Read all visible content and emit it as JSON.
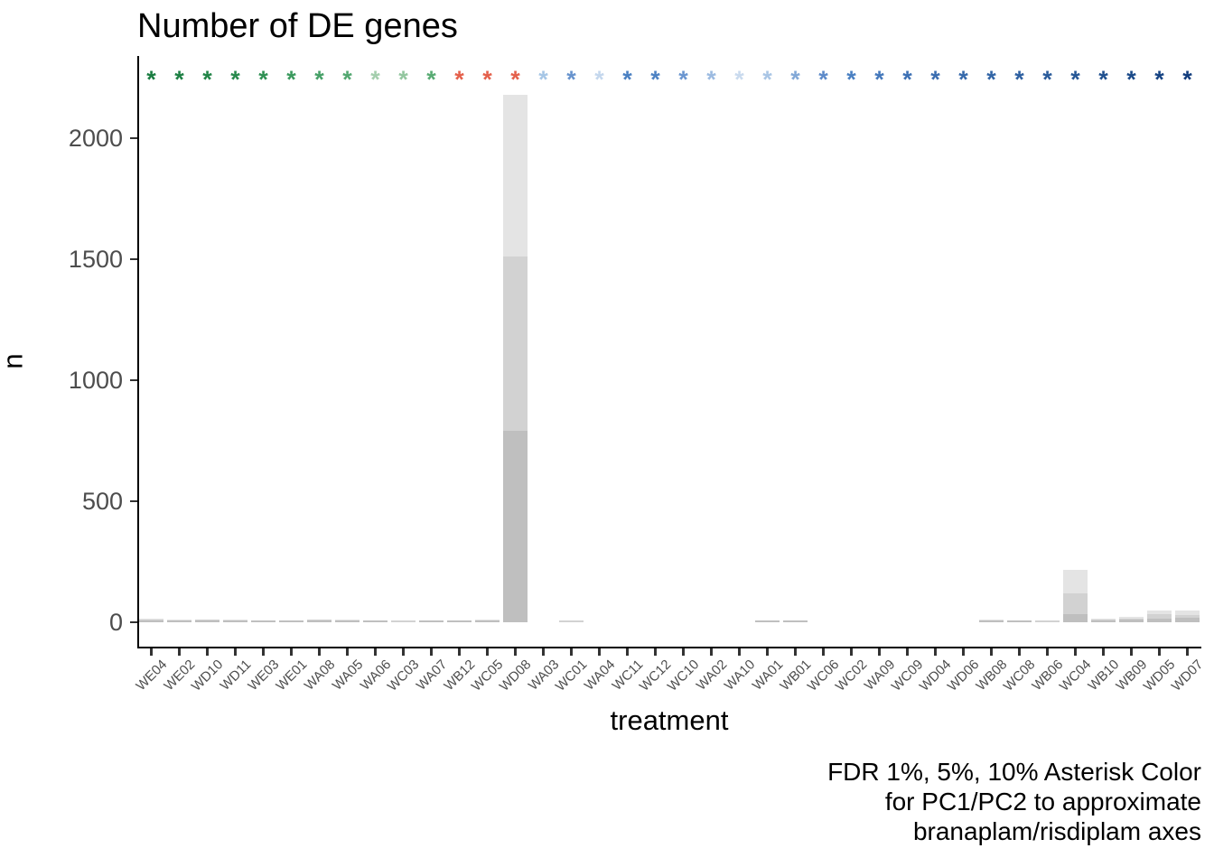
{
  "title": "Number of DE genes",
  "y_axis": {
    "label": "n"
  },
  "x_axis": {
    "label": "treatment"
  },
  "caption": {
    "line1": "FDR 1%, 5%, 10% Asterisk Color",
    "line2": "for PC1/PC2 to approximate",
    "line3": "branaplam/risdiplam axes"
  },
  "chart_data": {
    "type": "bar",
    "title": "Number of DE genes",
    "xlabel": "treatment",
    "ylabel": "n",
    "ylim": [
      0,
      2300
    ],
    "yticks": [
      0,
      500,
      1000,
      1500,
      2000
    ],
    "grid": false,
    "legend_position": "none",
    "bar_mode": "overlay",
    "categories": [
      "WE04",
      "WE02",
      "WD10",
      "WD11",
      "WE03",
      "WE01",
      "WA08",
      "WA05",
      "WA06",
      "WC03",
      "WA07",
      "WB12",
      "WC05",
      "WD08",
      "WA03",
      "WC01",
      "WA04",
      "WC11",
      "WC12",
      "WC10",
      "WA02",
      "WA10",
      "WA01",
      "WB01",
      "WC06",
      "WC02",
      "WA09",
      "WC09",
      "WD04",
      "WD06",
      "WB08",
      "WC08",
      "WB06",
      "WC04",
      "WB10",
      "WB09",
      "WD05",
      "WD07"
    ],
    "series": [
      {
        "name": "FDR 10%",
        "color": "#e4e4e4",
        "values": [
          14,
          11,
          13,
          10,
          8,
          8,
          12,
          10,
          8,
          2,
          5,
          9,
          11,
          2180,
          0,
          4,
          0,
          0,
          0,
          0,
          0,
          0,
          5,
          5,
          0,
          0,
          0,
          0,
          0,
          0,
          10,
          9,
          8,
          215,
          15,
          21,
          50,
          48
        ]
      },
      {
        "name": "FDR 5%",
        "color": "#d2d2d2",
        "values": [
          11,
          9,
          11,
          8,
          5,
          5,
          10,
          8,
          5,
          1,
          3,
          6,
          8,
          1510,
          0,
          2,
          0,
          0,
          0,
          0,
          0,
          0,
          4,
          4,
          0,
          0,
          0,
          0,
          0,
          0,
          7,
          5,
          4,
          120,
          11,
          16,
          33,
          30
        ]
      },
      {
        "name": "FDR 1%",
        "color": "#bfbfbf",
        "values": [
          8,
          6,
          8,
          5,
          2,
          2,
          7,
          5,
          2,
          0,
          1,
          3,
          5,
          790,
          0,
          0,
          0,
          0,
          0,
          0,
          0,
          0,
          2,
          2,
          0,
          0,
          0,
          0,
          0,
          0,
          3,
          2,
          0,
          35,
          6,
          10,
          16,
          18
        ]
      }
    ],
    "annotations": {
      "asterisk_symbol": "*",
      "asterisk_colors": [
        "#1a7d41",
        "#1d8044",
        "#218447",
        "#27894c",
        "#2f9053",
        "#3b9a5e",
        "#46a067",
        "#52a770",
        "#a4cead",
        "#93c69f",
        "#58ab73",
        "#e4604b",
        "#e4604b",
        "#e4604b",
        "#a6c6e6",
        "#6793cd",
        "#c4d7ed",
        "#4a80c2",
        "#4d82c3",
        "#6b96d0",
        "#9cbbe1",
        "#c9daee",
        "#a9c5e5",
        "#82a8d7",
        "#5d8ac9",
        "#4a80c2",
        "#4478bb",
        "#3c70b4",
        "#3a6db0",
        "#3669ab",
        "#3265a6",
        "#2e60a1",
        "#2a5b9b",
        "#255695",
        "#20508f",
        "#1b4a89",
        "#164383",
        "#113c7d"
      ]
    }
  }
}
